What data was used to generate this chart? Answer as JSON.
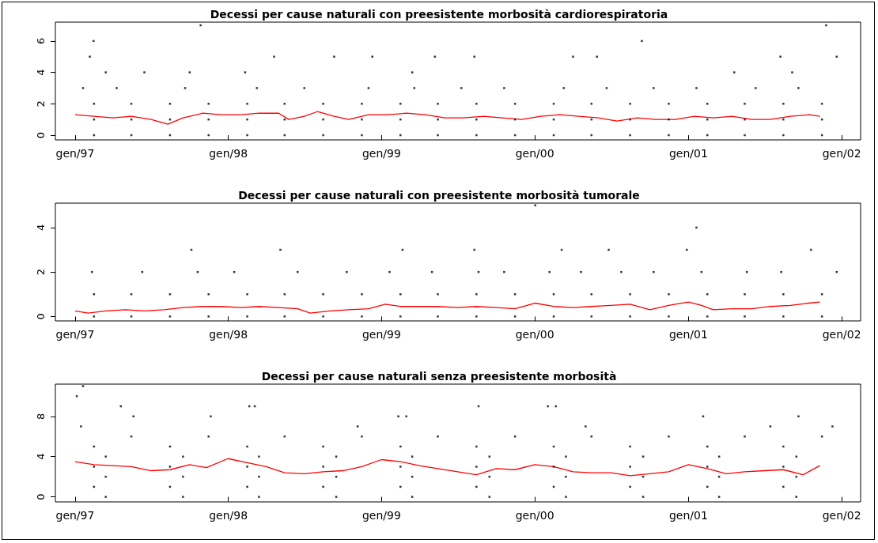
{
  "chart_data": [
    {
      "type": "scatter",
      "title": "Decessi per cause naturali con preesistente morbosità cardiorespiratoria",
      "xlim": [
        "1996-11-15",
        "2002-02-15"
      ],
      "xticks": [
        {
          "value": "1997-01-01",
          "label": "gen/97"
        },
        {
          "value": "1998-01-01",
          "label": "gen/98"
        },
        {
          "value": "1999-01-01",
          "label": "gen/99"
        },
        {
          "value": "2000-01-01",
          "label": "gen/00"
        },
        {
          "value": "2001-01-01",
          "label": "gen/01"
        },
        {
          "value": "2002-01-01",
          "label": "gen/02"
        }
      ],
      "ylim": [
        -0.3,
        7.2
      ],
      "yticks": [
        0,
        2,
        4,
        6
      ],
      "grid": false,
      "series": [
        {
          "type": "scatter",
          "color": "#000000",
          "marker": "square",
          "x": [
            "1997-02-15",
            "1997-05-15",
            "1997-08-15",
            "1997-11-15",
            "1998-02-15",
            "1998-05-15",
            "1998-08-15",
            "1998-11-15",
            "1999-02-15",
            "1999-05-15",
            "1999-08-15",
            "1999-11-15",
            "2000-02-15",
            "2000-05-15",
            "2000-08-15",
            "2000-11-15",
            "2001-02-15",
            "2001-05-15",
            "2001-08-15",
            "2001-11-15",
            "1997-02-15",
            "1997-05-15",
            "1997-08-15",
            "1997-11-15",
            "1998-02-15",
            "1998-05-15",
            "1998-08-15",
            "1998-11-15",
            "1999-02-15",
            "1999-05-15",
            "1999-08-15",
            "1999-11-15",
            "2000-02-15",
            "2000-05-15",
            "2000-08-15",
            "2000-11-15",
            "2001-02-15",
            "2001-05-15",
            "2001-08-15",
            "2001-11-15",
            "1997-02-15",
            "1997-05-15",
            "1997-08-15",
            "1997-11-15",
            "1998-02-15",
            "1998-05-15",
            "1998-08-15",
            "1998-11-15",
            "1999-02-15",
            "1999-05-15",
            "1999-08-15",
            "1999-11-15",
            "2000-02-15",
            "2000-05-15",
            "2000-08-15",
            "2000-11-15",
            "2001-02-15",
            "2001-05-15",
            "2001-08-15",
            "2001-11-15",
            "1997-01-20",
            "1997-04-10",
            "1997-09-20",
            "1998-03-10",
            "1998-07-01",
            "1998-12-01",
            "1999-03-20",
            "1999-07-10",
            "1999-10-20",
            "2000-03-10",
            "2000-06-20",
            "2000-10-10",
            "2001-01-20",
            "2001-06-10",
            "2001-09-20",
            "1997-02-14",
            "1997-10-27",
            "1997-02-05",
            "1998-04-20",
            "1998-09-10",
            "1998-12-10",
            "1999-05-08",
            "1999-08-10",
            "2000-04-01",
            "2000-05-28",
            "2000-09-12",
            "2001-08-08",
            "2001-11-25",
            "2001-12-20",
            "1997-03-15",
            "1997-06-15",
            "1997-10-01",
            "1998-02-10",
            "1999-03-15",
            "2001-04-20",
            "2001-09-05"
          ],
          "values": [
            0,
            0,
            0,
            0,
            0,
            0,
            0,
            0,
            0,
            0,
            0,
            0,
            0,
            0,
            0,
            0,
            0,
            0,
            0,
            0,
            1,
            1,
            1,
            1,
            1,
            1,
            1,
            1,
            1,
            1,
            1,
            1,
            1,
            1,
            1,
            1,
            1,
            1,
            1,
            1,
            2,
            2,
            2,
            2,
            2,
            2,
            2,
            2,
            2,
            2,
            2,
            2,
            2,
            2,
            2,
            2,
            2,
            2,
            2,
            2,
            3,
            3,
            3,
            3,
            3,
            3,
            3,
            3,
            3,
            3,
            3,
            3,
            3,
            3,
            3,
            6,
            7,
            5,
            5,
            5,
            5,
            5,
            5,
            5,
            5,
            6,
            5,
            7,
            5,
            4,
            4,
            4,
            4,
            4,
            4,
            4
          ]
        },
        {
          "type": "line",
          "color": "#ff0000",
          "x": [
            "1997-01-01",
            "1997-02-15",
            "1997-04-01",
            "1997-05-15",
            "1997-07-01",
            "1997-08-10",
            "1997-09-15",
            "1997-11-01",
            "1997-12-15",
            "1998-02-01",
            "1998-03-15",
            "1998-05-01",
            "1998-05-25",
            "1998-07-01",
            "1998-08-01",
            "1998-09-10",
            "1998-10-15",
            "1998-12-01",
            "1999-01-15",
            "1999-03-01",
            "1999-04-15",
            "1999-06-01",
            "1999-07-15",
            "1999-09-01",
            "1999-10-15",
            "1999-12-01",
            "2000-01-15",
            "2000-03-01",
            "2000-04-15",
            "2000-06-01",
            "2000-07-15",
            "2000-09-01",
            "2000-10-15",
            "2000-12-01",
            "2001-01-15",
            "2001-03-01",
            "2001-04-15",
            "2001-06-01",
            "2001-07-15",
            "2001-09-01",
            "2001-10-15",
            "2001-11-10"
          ],
          "values": [
            1.3,
            1.2,
            1.1,
            1.2,
            1.0,
            0.7,
            1.1,
            1.4,
            1.3,
            1.3,
            1.4,
            1.4,
            1.0,
            1.2,
            1.5,
            1.2,
            1.0,
            1.3,
            1.3,
            1.4,
            1.3,
            1.1,
            1.1,
            1.2,
            1.1,
            1.0,
            1.2,
            1.3,
            1.2,
            1.1,
            0.9,
            1.1,
            1.0,
            1.0,
            1.2,
            1.1,
            1.2,
            1.0,
            1.0,
            1.2,
            1.3,
            1.2
          ]
        }
      ]
    },
    {
      "type": "scatter",
      "title": "Decessi per cause naturali con preesistente morbosità tumorale",
      "xlim": [
        "1996-11-15",
        "2002-02-15"
      ],
      "xticks": [
        {
          "value": "1997-01-01",
          "label": "gen/97"
        },
        {
          "value": "1998-01-01",
          "label": "gen/98"
        },
        {
          "value": "1999-01-01",
          "label": "gen/99"
        },
        {
          "value": "2000-01-01",
          "label": "gen/00"
        },
        {
          "value": "2001-01-01",
          "label": "gen/01"
        },
        {
          "value": "2002-01-01",
          "label": "gen/02"
        }
      ],
      "ylim": [
        -0.2,
        5.1
      ],
      "yticks": [
        0,
        2,
        4
      ],
      "grid": false,
      "series": [
        {
          "type": "scatter",
          "color": "#000000",
          "marker": "square",
          "x": [
            "1997-02-15",
            "1997-05-15",
            "1997-08-15",
            "1997-11-15",
            "1998-02-15",
            "1998-05-15",
            "1998-08-15",
            "1998-11-15",
            "1999-02-15",
            "1999-05-15",
            "1999-08-15",
            "1999-11-15",
            "2000-02-15",
            "2000-05-15",
            "2000-08-15",
            "2000-11-15",
            "2001-02-15",
            "2001-05-15",
            "2001-08-15",
            "2001-11-15",
            "1997-02-15",
            "1997-05-15",
            "1997-08-15",
            "1997-11-15",
            "1998-02-15",
            "1998-05-15",
            "1998-08-15",
            "1998-11-15",
            "1999-02-15",
            "1999-05-15",
            "1999-08-15",
            "1999-11-15",
            "2000-02-15",
            "2000-05-15",
            "2000-08-15",
            "2000-11-15",
            "2001-02-15",
            "2001-05-15",
            "2001-08-15",
            "2001-11-15",
            "1997-02-10",
            "1997-06-10",
            "1997-10-20",
            "1998-01-15",
            "1998-06-15",
            "1998-10-10",
            "1999-01-20",
            "1999-05-01",
            "1999-08-20",
            "1999-10-20",
            "2000-02-05",
            "2000-04-20",
            "2000-07-25",
            "2000-10-10",
            "2001-02-01",
            "2001-05-20",
            "2001-08-10",
            "2001-12-20",
            "1997-10-05",
            "1998-05-05",
            "1999-02-20",
            "1999-08-10",
            "2000-03-05",
            "2000-06-25",
            "2000-12-28",
            "2001-10-20",
            "2000-01-02",
            "2001-01-20"
          ],
          "values": [
            0,
            0,
            0,
            0,
            0,
            0,
            0,
            0,
            0,
            0,
            0,
            0,
            0,
            0,
            0,
            0,
            0,
            0,
            0,
            0,
            1,
            1,
            1,
            1,
            1,
            1,
            1,
            1,
            1,
            1,
            1,
            1,
            1,
            1,
            1,
            1,
            1,
            1,
            1,
            1,
            2,
            2,
            2,
            2,
            2,
            2,
            2,
            2,
            2,
            2,
            2,
            2,
            2,
            2,
            2,
            2,
            2,
            2,
            3,
            3,
            3,
            3,
            3,
            3,
            3,
            3,
            5,
            4
          ]
        },
        {
          "type": "line",
          "color": "#ff0000",
          "x": [
            "1997-01-01",
            "1997-02-01",
            "1997-03-15",
            "1997-05-01",
            "1997-06-15",
            "1997-08-01",
            "1997-09-15",
            "1997-11-01",
            "1997-12-15",
            "1998-02-01",
            "1998-03-15",
            "1998-05-01",
            "1998-06-15",
            "1998-07-15",
            "1998-09-01",
            "1998-10-15",
            "1998-12-01",
            "1999-01-10",
            "1999-02-15",
            "1999-04-01",
            "1999-05-15",
            "1999-07-01",
            "1999-08-15",
            "1999-10-01",
            "1999-11-15",
            "2000-01-01",
            "2000-02-15",
            "2000-04-01",
            "2000-05-15",
            "2000-07-01",
            "2000-08-15",
            "2000-10-01",
            "2000-11-15",
            "2001-01-01",
            "2001-02-01",
            "2001-03-01",
            "2001-04-15",
            "2001-06-01",
            "2001-07-15",
            "2001-09-01",
            "2001-10-15",
            "2001-11-10"
          ],
          "values": [
            0.25,
            0.15,
            0.25,
            0.3,
            0.25,
            0.3,
            0.4,
            0.45,
            0.45,
            0.4,
            0.45,
            0.4,
            0.35,
            0.15,
            0.25,
            0.3,
            0.35,
            0.55,
            0.45,
            0.45,
            0.45,
            0.4,
            0.45,
            0.4,
            0.35,
            0.6,
            0.45,
            0.4,
            0.45,
            0.5,
            0.55,
            0.3,
            0.5,
            0.65,
            0.5,
            0.3,
            0.35,
            0.35,
            0.45,
            0.5,
            0.6,
            0.65
          ]
        }
      ]
    },
    {
      "type": "scatter",
      "title": "Decessi per cause naturali senza preesistente morbosità",
      "xlim": [
        "1996-11-15",
        "2002-02-15"
      ],
      "xticks": [
        {
          "value": "1997-01-01",
          "label": "gen/97"
        },
        {
          "value": "1998-01-01",
          "label": "gen/98"
        },
        {
          "value": "1999-01-01",
          "label": "gen/99"
        },
        {
          "value": "2000-01-01",
          "label": "gen/00"
        },
        {
          "value": "2001-01-01",
          "label": "gen/01"
        },
        {
          "value": "2002-01-01",
          "label": "gen/02"
        }
      ],
      "ylim": [
        -0.5,
        11.2
      ],
      "yticks": [
        0,
        4,
        8
      ],
      "grid": false,
      "series": [
        {
          "type": "scatter",
          "color": "#000000",
          "marker": "square",
          "x": [
            "1997-03-15",
            "1997-09-15",
            "1998-03-15",
            "1998-09-15",
            "1999-03-15",
            "1999-09-15",
            "2000-03-15",
            "2000-09-15",
            "2001-03-15",
            "2001-09-15",
            "1997-02-15",
            "1997-08-15",
            "1998-02-15",
            "1998-08-15",
            "1999-02-15",
            "1999-08-15",
            "2000-02-15",
            "2000-08-15",
            "2001-02-15",
            "2001-08-15",
            "1997-03-15",
            "1997-09-15",
            "1998-03-15",
            "1998-09-15",
            "1999-03-15",
            "1999-09-15",
            "2000-03-15",
            "2000-09-15",
            "2001-03-15",
            "2001-09-15",
            "1997-02-15",
            "1997-08-15",
            "1998-02-15",
            "1998-08-15",
            "1999-02-15",
            "1999-08-15",
            "2000-02-15",
            "2000-08-15",
            "2001-02-15",
            "2001-08-15",
            "1997-03-15",
            "1997-09-15",
            "1998-03-15",
            "1998-09-15",
            "1999-03-15",
            "1999-09-15",
            "2000-03-15",
            "2000-09-15",
            "2001-03-15",
            "2001-09-15",
            "1997-02-15",
            "1997-08-15",
            "1998-02-15",
            "1998-08-15",
            "1999-02-15",
            "1999-08-15",
            "2000-02-15",
            "2000-08-15",
            "2001-02-15",
            "2001-08-15",
            "1997-05-15",
            "1997-11-15",
            "1998-05-15",
            "1998-11-15",
            "1999-05-15",
            "1999-11-15",
            "2000-05-15",
            "2000-11-15",
            "2001-05-15",
            "2001-11-15",
            "1997-01-05",
            "1997-01-20",
            "1997-05-20",
            "1997-04-20",
            "1997-11-20",
            "1998-02-20",
            "1998-03-05",
            "1999-02-10",
            "1999-03-01",
            "1999-08-20",
            "2000-02-01",
            "2000-02-20",
            "2001-02-05",
            "2001-09-20",
            "1997-01-15",
            "1998-11-05",
            "2000-05-01",
            "2001-07-15",
            "2001-12-10"
          ],
          "values": [
            0,
            0,
            0,
            0,
            0,
            0,
            0,
            0,
            0,
            0,
            1,
            1,
            1,
            1,
            1,
            1,
            1,
            1,
            1,
            1,
            2,
            2,
            2,
            2,
            2,
            2,
            2,
            2,
            2,
            2,
            3,
            3,
            3,
            3,
            3,
            3,
            3,
            3,
            3,
            3,
            4,
            4,
            4,
            4,
            4,
            4,
            4,
            4,
            4,
            4,
            5,
            5,
            5,
            5,
            5,
            5,
            5,
            5,
            5,
            5,
            6,
            6,
            6,
            6,
            6,
            6,
            6,
            6,
            6,
            6,
            10,
            11,
            8,
            9,
            8,
            9,
            9,
            8,
            8,
            9,
            9,
            9,
            8,
            8,
            7,
            7,
            7,
            7,
            7
          ]
        },
        {
          "type": "line",
          "color": "#ff0000",
          "x": [
            "1997-01-01",
            "1997-02-15",
            "1997-04-01",
            "1997-05-15",
            "1997-07-01",
            "1997-08-15",
            "1997-10-01",
            "1997-11-10",
            "1997-12-31",
            "1998-02-15",
            "1998-04-01",
            "1998-05-15",
            "1998-07-01",
            "1998-08-15",
            "1998-10-01",
            "1998-11-15",
            "1999-01-01",
            "1999-02-15",
            "1999-04-01",
            "1999-05-15",
            "1999-07-01",
            "1999-08-15",
            "1999-10-01",
            "1999-11-15",
            "2000-01-01",
            "2000-02-15",
            "2000-04-01",
            "2000-05-15",
            "2000-07-01",
            "2000-08-15",
            "2000-10-01",
            "2000-11-15",
            "2001-01-01",
            "2001-02-15",
            "2001-04-01",
            "2001-05-15",
            "2001-07-01",
            "2001-08-15",
            "2001-10-01",
            "2001-11-10"
          ],
          "values": [
            3.5,
            3.2,
            3.1,
            3.0,
            2.6,
            2.7,
            3.2,
            2.9,
            3.8,
            3.4,
            3.0,
            2.4,
            2.3,
            2.5,
            2.6,
            3.0,
            3.7,
            3.5,
            3.1,
            2.8,
            2.5,
            2.2,
            2.8,
            2.7,
            3.2,
            3.0,
            2.5,
            2.4,
            2.4,
            2.1,
            2.3,
            2.5,
            3.2,
            2.8,
            2.3,
            2.5,
            2.6,
            2.7,
            2.2,
            3.1
          ]
        }
      ]
    }
  ]
}
